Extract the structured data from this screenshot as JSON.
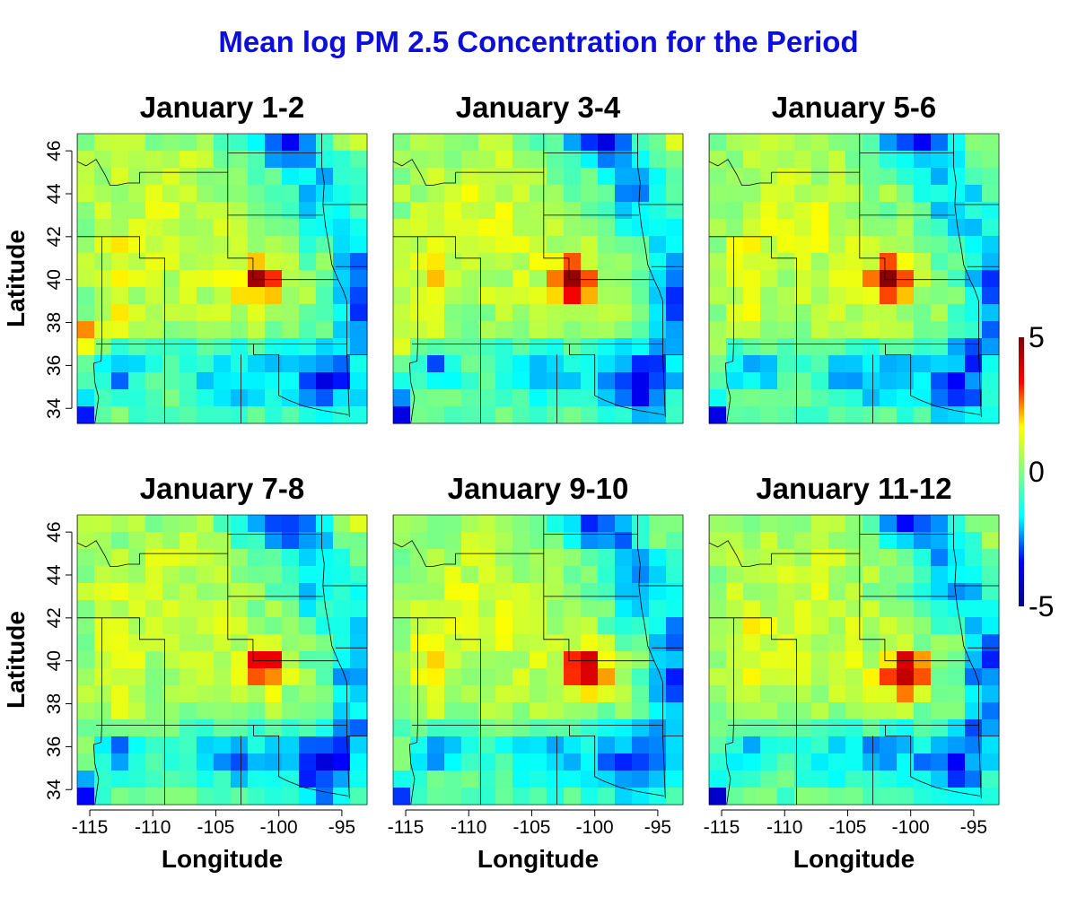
{
  "chart_data": {
    "type": "heatmap",
    "title": "Mean log PM 2.5 Concentration for the Period",
    "xlabel": "Longitude",
    "ylabel": "Latitude",
    "xlim": [
      -116,
      -93
    ],
    "ylim": [
      33.3,
      46.8
    ],
    "x_ticks": [
      "-115",
      "-110",
      "-105",
      "-100",
      "-95"
    ],
    "y_ticks": [
      "34",
      "36",
      "38",
      "40",
      "42",
      "44",
      "46"
    ],
    "color_scale": {
      "min": -5,
      "max": 5,
      "labels": [
        "5",
        "0",
        "-5"
      ],
      "colors": [
        "#00008f",
        "#0000ff",
        "#00ffff",
        "#80ff80",
        "#ffff00",
        "#ff0000",
        "#800000"
      ]
    },
    "panels": [
      {
        "title": "January 1-2",
        "hotspot": {
          "lon": -101.5,
          "lat": 40.1,
          "peak": 3.5
        },
        "southwest": {
          "lon": -115.6,
          "lat": 37.3,
          "peak": 2.6
        }
      },
      {
        "title": "January 3-4",
        "hotspot": {
          "lon": -101.5,
          "lat": 40.0,
          "peak": 4.0
        },
        "southwest": {
          "lon": -115.6,
          "lat": 37.1,
          "peak": 2.0
        }
      },
      {
        "title": "January 5-6",
        "hotspot": {
          "lon": -101.5,
          "lat": 40.0,
          "peak": 4.2
        },
        "southwest": {
          "lon": -115.6,
          "lat": 36.9,
          "peak": 1.4
        }
      },
      {
        "title": "January 7-8",
        "hotspot": {
          "lon": -101.0,
          "lat": 39.8,
          "peak": 4.0
        },
        "southwest": {
          "lon": -115.6,
          "lat": 36.0,
          "peak": 0.6
        }
      },
      {
        "title": "January 9-10",
        "hotspot": {
          "lon": -100.5,
          "lat": 39.6,
          "peak": 4.4
        },
        "southwest": {
          "lon": -115.6,
          "lat": 36.0,
          "peak": 0.6
        }
      },
      {
        "title": "January 11-12",
        "hotspot": {
          "lon": -100.5,
          "lat": 39.5,
          "peak": 4.5
        },
        "southwest": {
          "lon": -115.6,
          "lat": 36.0,
          "peak": 0.6
        }
      }
    ]
  }
}
